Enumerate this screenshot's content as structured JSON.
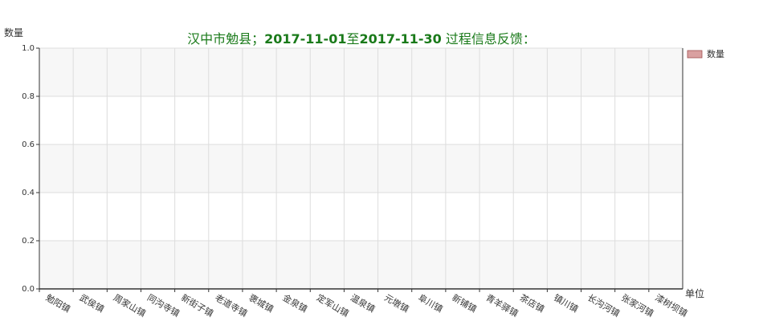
{
  "chart_data": {
    "type": "bar",
    "title_prefix": "汉中市勉县；",
    "title_start": "2017-11-01",
    "title_mid": "至",
    "title_end": "2017-11-30",
    "title_suffix": " 过程信息反馈：",
    "ylabel": "数量",
    "xlabel": "单位",
    "ylim": [
      0,
      1
    ],
    "yticks": [
      "0.0",
      "0.2",
      "0.4",
      "0.6",
      "0.8",
      "1.0"
    ],
    "categories": [
      "勉阳镇",
      "武侯镇",
      "周家山镇",
      "同沟寺镇",
      "新街子镇",
      "老道寺镇",
      "褒城镇",
      "金泉镇",
      "定军山镇",
      "温泉镇",
      "元墩镇",
      "阜川镇",
      "新铺镇",
      "青羊驿镇",
      "茶店镇",
      "镇川镇",
      "长沟河镇",
      "张家河镇",
      "漆树坝镇"
    ],
    "series": [
      {
        "name": "数量",
        "values": [
          0,
          0,
          0,
          0,
          0,
          0,
          0,
          0,
          0,
          0,
          0,
          0,
          0,
          0,
          0,
          0,
          0,
          0,
          0
        ]
      }
    ],
    "grid": true,
    "legend": "right",
    "colors": {
      "title": "#1a7a1a",
      "bar": "#d9a0a0",
      "bar_border": "#a05050",
      "band": "#f7f7f7",
      "grid": "#dddddd",
      "axis": "#333333"
    }
  }
}
